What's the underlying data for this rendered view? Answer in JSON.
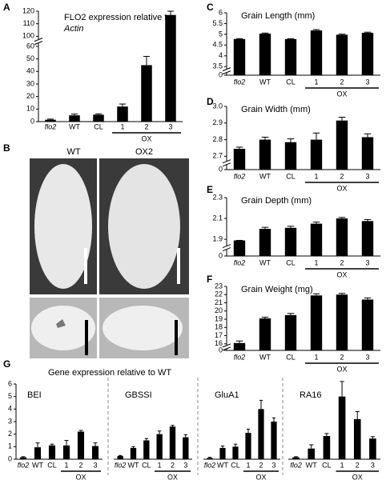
{
  "chart_data": [
    {
      "panel": "A",
      "type": "bar",
      "title": [
        "FLO2 expression relative to",
        "Actin"
      ],
      "categories": [
        "flo2",
        "WT",
        "CL",
        "1",
        "2",
        "3"
      ],
      "group_label": "OX",
      "values": [
        1.5,
        5,
        5.5,
        12,
        45,
        117
      ],
      "errors": [
        0.5,
        1,
        0.7,
        2,
        7,
        3
      ],
      "ylim": [
        0,
        120
      ],
      "yticks": [
        0,
        10,
        20,
        30,
        40,
        50,
        60,
        100,
        110,
        120
      ],
      "color": "#000000"
    },
    {
      "panel": "C",
      "type": "bar",
      "title": "Grain Length (mm)",
      "categories": [
        "flo2",
        "WT",
        "CL",
        "1",
        "2",
        "3"
      ],
      "group_label": "OX",
      "values": [
        4.78,
        5.03,
        4.78,
        5.18,
        4.98,
        5.07
      ],
      "errors": [
        0.02,
        0.03,
        0.02,
        0.04,
        0.03,
        0.03
      ],
      "ylim": [
        0,
        6
      ],
      "yticks": [
        0,
        3.5,
        4,
        4.5,
        5,
        5.5,
        6
      ],
      "color": "#000000"
    },
    {
      "panel": "D",
      "type": "bar",
      "title": "Grain Width (mm)",
      "categories": [
        "flo2",
        "WT",
        "CL",
        "1",
        "2",
        "3"
      ],
      "group_label": "OX",
      "values": [
        2.745,
        2.8,
        2.785,
        2.8,
        2.915,
        2.815
      ],
      "errors": [
        0.01,
        0.015,
        0.02,
        0.04,
        0.02,
        0.02
      ],
      "ylim": [
        0,
        3
      ],
      "yticks": [
        0,
        2.7,
        2.8,
        2.9,
        {
          "value": 3,
          "label": "3.0"
        }
      ],
      "color": "#000000"
    },
    {
      "panel": "E",
      "type": "bar",
      "title": "Grain Depth (mm)",
      "categories": [
        "flo2",
        "WT",
        "CL",
        "1",
        "2",
        "3"
      ],
      "group_label": "OX",
      "values": [
        1.77,
        2.0,
        2.01,
        2.05,
        2.1,
        2.075
      ],
      "errors": [
        0.01,
        0.015,
        0.015,
        0.015,
        0.01,
        0.015
      ],
      "ylim": [
        0,
        2.3
      ],
      "yticks": [
        0,
        1.9,
        2.1,
        2.3
      ],
      "color": "#000000"
    },
    {
      "panel": "F",
      "type": "bar",
      "title": "Grain Weight (mg)",
      "categories": [
        "flo2",
        "WT",
        "CL",
        "1",
        "2",
        "3"
      ],
      "group_label": "OX",
      "values": [
        16.1,
        19.1,
        19.5,
        21.9,
        22.0,
        21.4
      ],
      "errors": [
        0.25,
        0.15,
        0.2,
        0.2,
        0.15,
        0.2
      ],
      "ylim": [
        0,
        23
      ],
      "yticks": [
        0,
        16,
        17,
        18,
        19,
        20,
        21,
        22,
        23
      ],
      "color": "#000000"
    },
    {
      "panel": "G",
      "type": "bar",
      "title": "Gene expression relative to WT",
      "categories": [
        "flo2",
        "WT",
        "CL",
        "1",
        "2",
        "3"
      ],
      "group_label": "OX",
      "ylim": [
        0,
        6
      ],
      "yticks": [
        0,
        1,
        2,
        3,
        4,
        5,
        6
      ],
      "color": "#000000",
      "series": [
        {
          "name": "BEI",
          "values": [
            0.15,
            0.95,
            1.1,
            1.1,
            2.2,
            1.05
          ],
          "errors": [
            0.05,
            0.35,
            0.1,
            0.4,
            0.1,
            0.25
          ]
        },
        {
          "name": "GBSSI",
          "values": [
            0.25,
            0.9,
            1.5,
            2.0,
            2.6,
            1.75
          ],
          "errors": [
            0.05,
            0.1,
            0.15,
            0.25,
            0.1,
            0.2
          ]
        },
        {
          "name": "GluA1",
          "values": [
            0.1,
            0.9,
            1.0,
            2.1,
            4.0,
            3.0
          ],
          "errors": [
            0.05,
            0.15,
            0.2,
            0.3,
            0.7,
            0.3
          ]
        },
        {
          "name": "RA16",
          "values": [
            0.15,
            0.85,
            1.85,
            5.0,
            3.2,
            1.65
          ],
          "errors": [
            0.05,
            0.3,
            0.2,
            1.2,
            0.6,
            0.15
          ]
        }
      ]
    }
  ],
  "image_panel": {
    "panel": "B",
    "labels": [
      "WT",
      "OX2"
    ]
  }
}
